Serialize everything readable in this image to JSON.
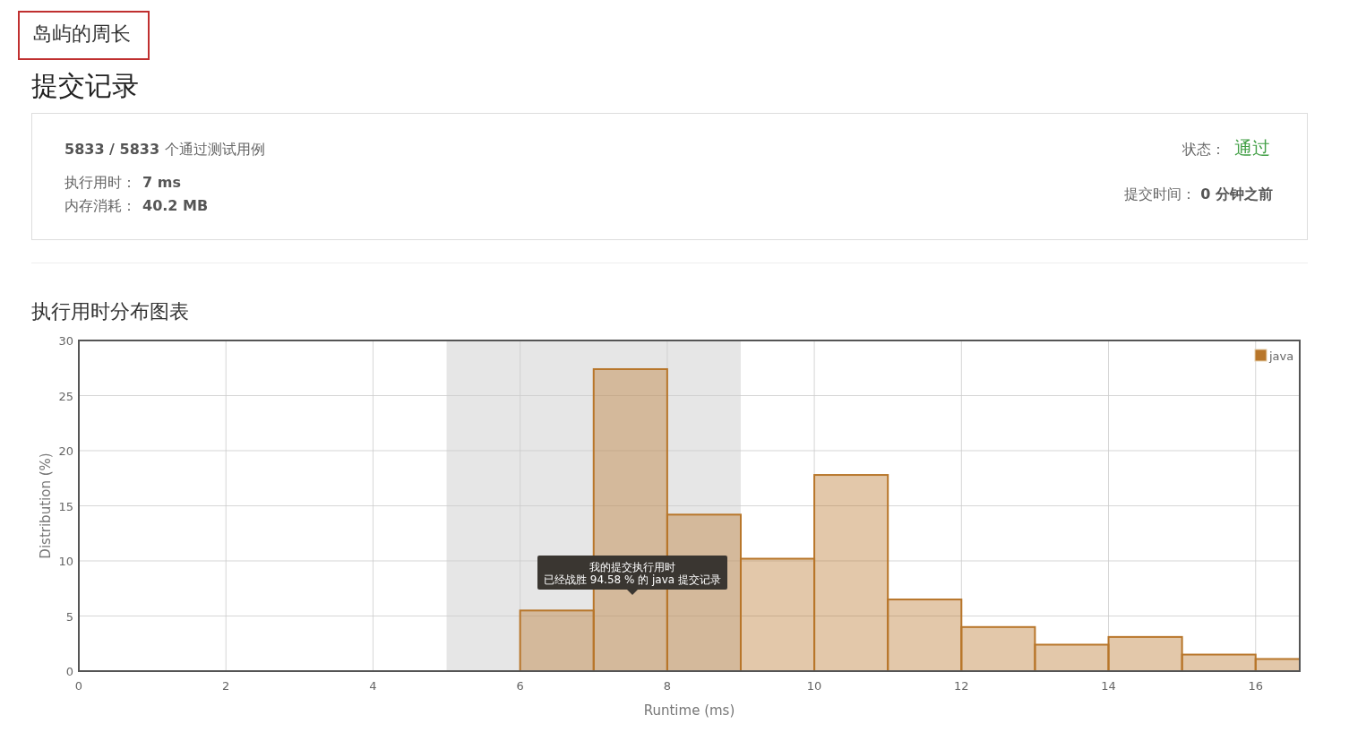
{
  "chart_data": {
    "type": "histogram",
    "title": "执行用时分布图表",
    "xlabel": "Runtime (ms)",
    "ylabel": "Distribution (%)",
    "bins": [
      6,
      7,
      8,
      9,
      10,
      11,
      12,
      13,
      14,
      15,
      16,
      16.6
    ],
    "series": [
      {
        "name": "java",
        "color": "#b8762a",
        "values": [
          5.5,
          27.4,
          14.2,
          10.2,
          17.8,
          6.5,
          4.0,
          2.4,
          3.1,
          1.5,
          1.1
        ]
      }
    ],
    "xlim": [
      0,
      16.6
    ],
    "xticks": [
      0,
      2,
      4,
      6,
      8,
      10,
      12,
      14,
      16
    ],
    "ylim": [
      0,
      30
    ],
    "yticks": [
      0,
      5,
      10,
      15,
      20,
      25,
      30
    ],
    "grid": true,
    "legend": "top right",
    "bands": [
      {
        "axis": "x",
        "from": 5,
        "to": 9,
        "color": "#e6e6e6"
      }
    ],
    "annotations": [
      "岛屿的周长",
      "提交记录",
      "5833 / 5833",
      "个通过测试用例",
      "执行用时：",
      "7 ms",
      "内存消耗：",
      "40.2 MB",
      "状态：",
      "通过",
      "提交时间：",
      "0 分钟之前",
      "我的提交执行用时",
      "已经战胜 94.58 % 的 java 提交记录"
    ]
  }
}
